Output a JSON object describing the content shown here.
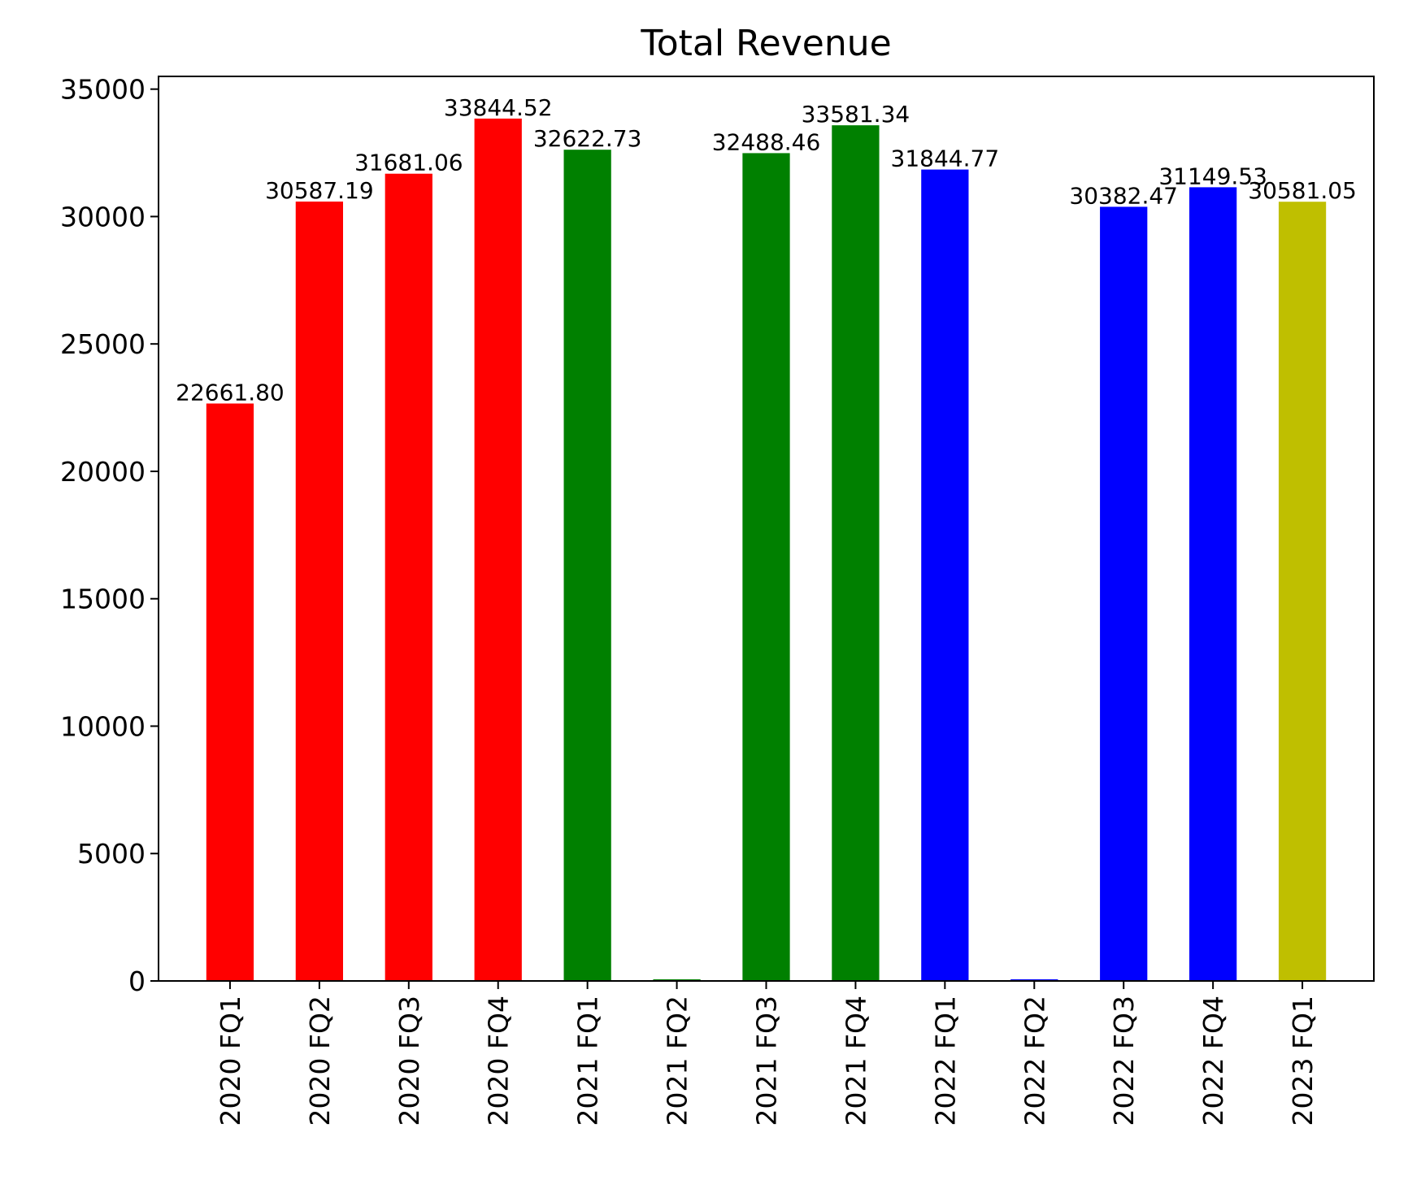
{
  "chart_data": {
    "type": "bar",
    "title": "Total Revenue",
    "xlabel": "",
    "ylabel": "",
    "ylim": [
      0,
      35500
    ],
    "yticks": [
      0,
      5000,
      10000,
      15000,
      20000,
      25000,
      30000,
      35000
    ],
    "grid": false,
    "legend": "none",
    "categories": [
      "2020 FQ1",
      "2020 FQ2",
      "2020 FQ3",
      "2020 FQ4",
      "2021 FQ1",
      "2021 FQ2",
      "2021 FQ3",
      "2021 FQ4",
      "2022 FQ1",
      "2022 FQ2",
      "2022 FQ3",
      "2022 FQ4",
      "2023 FQ1"
    ],
    "values": [
      22661.8,
      30587.19,
      31681.06,
      33844.52,
      32622.73,
      0,
      32488.46,
      33581.34,
      31844.77,
      0,
      30382.47,
      31149.53,
      30581.05
    ],
    "data_labels": [
      "22661.80",
      "30587.19",
      "31681.06",
      "33844.52",
      "32622.73",
      "",
      "32488.46",
      "33581.34",
      "31844.77",
      "",
      "30382.47",
      "31149.53",
      "30581.05"
    ],
    "colors": [
      "#ff0000",
      "#ff0000",
      "#ff0000",
      "#ff0000",
      "#008000",
      "#008000",
      "#008000",
      "#008000",
      "#0000ff",
      "#0000ff",
      "#0000ff",
      "#0000ff",
      "#bfbf00"
    ]
  }
}
